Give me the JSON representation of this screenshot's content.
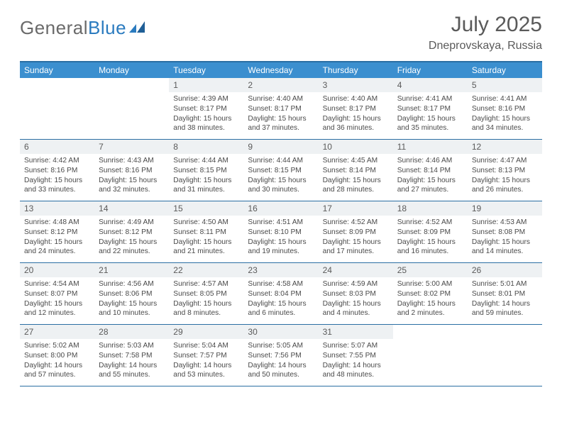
{
  "brand": {
    "part1": "General",
    "part2": "Blue"
  },
  "title": {
    "month": "July 2025",
    "location": "Dneprovskaya, Russia"
  },
  "colors": {
    "header_bg": "#3b8fcf",
    "header_text": "#ffffff",
    "rule": "#2b6fa3",
    "daynum_bg": "#eef1f3",
    "text": "#4a4a4a",
    "brand_gray": "#6a6a6a",
    "brand_blue": "#2b7bbf"
  },
  "dayNames": [
    "Sunday",
    "Monday",
    "Tuesday",
    "Wednesday",
    "Thursday",
    "Friday",
    "Saturday"
  ],
  "weeks": [
    [
      {
        "n": "",
        "sr": "",
        "ss": "",
        "dl": ""
      },
      {
        "n": "",
        "sr": "",
        "ss": "",
        "dl": ""
      },
      {
        "n": "1",
        "sr": "Sunrise: 4:39 AM",
        "ss": "Sunset: 8:17 PM",
        "dl": "Daylight: 15 hours and 38 minutes."
      },
      {
        "n": "2",
        "sr": "Sunrise: 4:40 AM",
        "ss": "Sunset: 8:17 PM",
        "dl": "Daylight: 15 hours and 37 minutes."
      },
      {
        "n": "3",
        "sr": "Sunrise: 4:40 AM",
        "ss": "Sunset: 8:17 PM",
        "dl": "Daylight: 15 hours and 36 minutes."
      },
      {
        "n": "4",
        "sr": "Sunrise: 4:41 AM",
        "ss": "Sunset: 8:17 PM",
        "dl": "Daylight: 15 hours and 35 minutes."
      },
      {
        "n": "5",
        "sr": "Sunrise: 4:41 AM",
        "ss": "Sunset: 8:16 PM",
        "dl": "Daylight: 15 hours and 34 minutes."
      }
    ],
    [
      {
        "n": "6",
        "sr": "Sunrise: 4:42 AM",
        "ss": "Sunset: 8:16 PM",
        "dl": "Daylight: 15 hours and 33 minutes."
      },
      {
        "n": "7",
        "sr": "Sunrise: 4:43 AM",
        "ss": "Sunset: 8:16 PM",
        "dl": "Daylight: 15 hours and 32 minutes."
      },
      {
        "n": "8",
        "sr": "Sunrise: 4:44 AM",
        "ss": "Sunset: 8:15 PM",
        "dl": "Daylight: 15 hours and 31 minutes."
      },
      {
        "n": "9",
        "sr": "Sunrise: 4:44 AM",
        "ss": "Sunset: 8:15 PM",
        "dl": "Daylight: 15 hours and 30 minutes."
      },
      {
        "n": "10",
        "sr": "Sunrise: 4:45 AM",
        "ss": "Sunset: 8:14 PM",
        "dl": "Daylight: 15 hours and 28 minutes."
      },
      {
        "n": "11",
        "sr": "Sunrise: 4:46 AM",
        "ss": "Sunset: 8:14 PM",
        "dl": "Daylight: 15 hours and 27 minutes."
      },
      {
        "n": "12",
        "sr": "Sunrise: 4:47 AM",
        "ss": "Sunset: 8:13 PM",
        "dl": "Daylight: 15 hours and 26 minutes."
      }
    ],
    [
      {
        "n": "13",
        "sr": "Sunrise: 4:48 AM",
        "ss": "Sunset: 8:12 PM",
        "dl": "Daylight: 15 hours and 24 minutes."
      },
      {
        "n": "14",
        "sr": "Sunrise: 4:49 AM",
        "ss": "Sunset: 8:12 PM",
        "dl": "Daylight: 15 hours and 22 minutes."
      },
      {
        "n": "15",
        "sr": "Sunrise: 4:50 AM",
        "ss": "Sunset: 8:11 PM",
        "dl": "Daylight: 15 hours and 21 minutes."
      },
      {
        "n": "16",
        "sr": "Sunrise: 4:51 AM",
        "ss": "Sunset: 8:10 PM",
        "dl": "Daylight: 15 hours and 19 minutes."
      },
      {
        "n": "17",
        "sr": "Sunrise: 4:52 AM",
        "ss": "Sunset: 8:09 PM",
        "dl": "Daylight: 15 hours and 17 minutes."
      },
      {
        "n": "18",
        "sr": "Sunrise: 4:52 AM",
        "ss": "Sunset: 8:09 PM",
        "dl": "Daylight: 15 hours and 16 minutes."
      },
      {
        "n": "19",
        "sr": "Sunrise: 4:53 AM",
        "ss": "Sunset: 8:08 PM",
        "dl": "Daylight: 15 hours and 14 minutes."
      }
    ],
    [
      {
        "n": "20",
        "sr": "Sunrise: 4:54 AM",
        "ss": "Sunset: 8:07 PM",
        "dl": "Daylight: 15 hours and 12 minutes."
      },
      {
        "n": "21",
        "sr": "Sunrise: 4:56 AM",
        "ss": "Sunset: 8:06 PM",
        "dl": "Daylight: 15 hours and 10 minutes."
      },
      {
        "n": "22",
        "sr": "Sunrise: 4:57 AM",
        "ss": "Sunset: 8:05 PM",
        "dl": "Daylight: 15 hours and 8 minutes."
      },
      {
        "n": "23",
        "sr": "Sunrise: 4:58 AM",
        "ss": "Sunset: 8:04 PM",
        "dl": "Daylight: 15 hours and 6 minutes."
      },
      {
        "n": "24",
        "sr": "Sunrise: 4:59 AM",
        "ss": "Sunset: 8:03 PM",
        "dl": "Daylight: 15 hours and 4 minutes."
      },
      {
        "n": "25",
        "sr": "Sunrise: 5:00 AM",
        "ss": "Sunset: 8:02 PM",
        "dl": "Daylight: 15 hours and 2 minutes."
      },
      {
        "n": "26",
        "sr": "Sunrise: 5:01 AM",
        "ss": "Sunset: 8:01 PM",
        "dl": "Daylight: 14 hours and 59 minutes."
      }
    ],
    [
      {
        "n": "27",
        "sr": "Sunrise: 5:02 AM",
        "ss": "Sunset: 8:00 PM",
        "dl": "Daylight: 14 hours and 57 minutes."
      },
      {
        "n": "28",
        "sr": "Sunrise: 5:03 AM",
        "ss": "Sunset: 7:58 PM",
        "dl": "Daylight: 14 hours and 55 minutes."
      },
      {
        "n": "29",
        "sr": "Sunrise: 5:04 AM",
        "ss": "Sunset: 7:57 PM",
        "dl": "Daylight: 14 hours and 53 minutes."
      },
      {
        "n": "30",
        "sr": "Sunrise: 5:05 AM",
        "ss": "Sunset: 7:56 PM",
        "dl": "Daylight: 14 hours and 50 minutes."
      },
      {
        "n": "31",
        "sr": "Sunrise: 5:07 AM",
        "ss": "Sunset: 7:55 PM",
        "dl": "Daylight: 14 hours and 48 minutes."
      },
      {
        "n": "",
        "sr": "",
        "ss": "",
        "dl": ""
      },
      {
        "n": "",
        "sr": "",
        "ss": "",
        "dl": ""
      }
    ]
  ]
}
